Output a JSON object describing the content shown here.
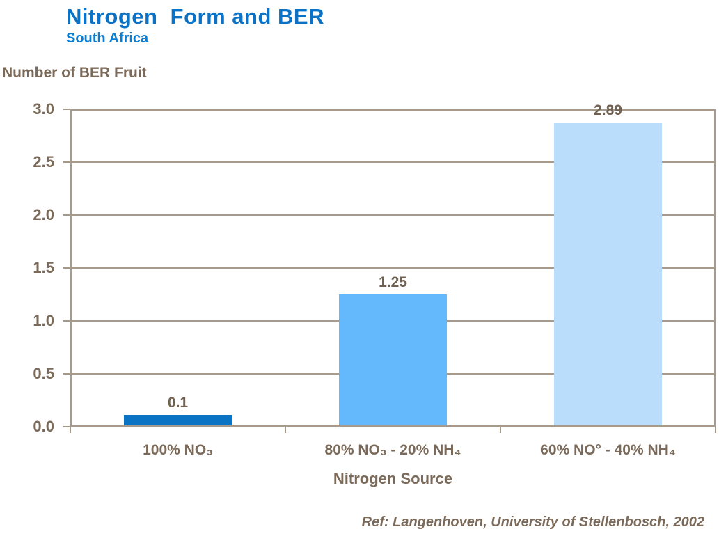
{
  "chart_data": {
    "type": "bar",
    "title": "Nitrogen  Form and BER",
    "subtitle": "South Africa",
    "ylabel": "Number of BER Fruit",
    "xlabel": "Nitrogen Source",
    "categories": [
      "100% NO₃",
      "80% NO₃ - 20% NH₄",
      "60% NO° - 40% NH₄"
    ],
    "values": [
      0.1,
      1.25,
      2.89
    ],
    "value_labels": [
      "0.1",
      "1.25",
      "2.89"
    ],
    "bar_colors": [
      "#0b73c4",
      "#63b9fb",
      "#b9ddfb"
    ],
    "ylim": [
      0,
      3.0
    ],
    "ytick_step": 0.5,
    "yticks": [
      "0.0",
      "0.5",
      "1.0",
      "1.5",
      "2.0",
      "2.5",
      "3.0"
    ],
    "grid": "horizontal",
    "legend": "none"
  },
  "footer": {
    "reference": "Ref: Langenhoven, University of Stellenbosch, 2002"
  },
  "colors": {
    "title_blue": "#0b72c6",
    "subtitle_blue": "#0e7ed0",
    "text_brown": "#7b6a59",
    "data_label_brown": "#6f604f",
    "axis_line": "#a89a8b",
    "bar_dark_blue": "#0b73c4",
    "bar_medium_blue": "#63b9fb",
    "bar_light_blue": "#b9ddfb"
  }
}
